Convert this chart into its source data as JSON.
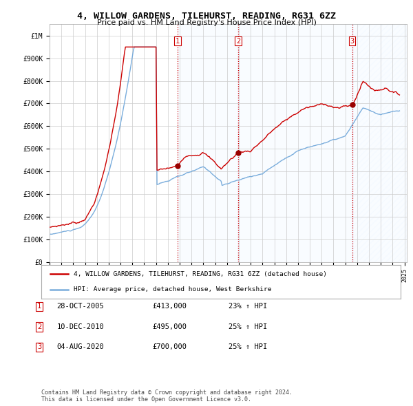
{
  "title": "4, WILLOW GARDENS, TILEHURST, READING, RG31 6ZZ",
  "subtitle": "Price paid vs. HM Land Registry's House Price Index (HPI)",
  "sale_color": "#cc0000",
  "hpi_color": "#7aaddc",
  "dot_color": "#990000",
  "vline_color": "#cc0000",
  "shade_color": "#ddeeff",
  "hatch_color": "#ddeeff",
  "legend_label_sale": "4, WILLOW GARDENS, TILEHURST, READING, RG31 6ZZ (detached house)",
  "legend_label_hpi": "HPI: Average price, detached house, West Berkshire",
  "transactions": [
    {
      "label": "1",
      "date": "28-OCT-2005",
      "price": "£413,000",
      "change": "23% ↑ HPI",
      "year": 2005.83,
      "price_val": 413000
    },
    {
      "label": "2",
      "date": "10-DEC-2010",
      "price": "£495,000",
      "change": "25% ↑ HPI",
      "year": 2010.95,
      "price_val": 495000
    },
    {
      "label": "3",
      "date": "04-AUG-2020",
      "price": "£700,000",
      "change": "25% ↑ HPI",
      "year": 2020.59,
      "price_val": 700000
    }
  ],
  "footer": "Contains HM Land Registry data © Crown copyright and database right 2024.\nThis data is licensed under the Open Government Licence v3.0.",
  "background_color": "#ffffff",
  "grid_color": "#cccccc",
  "xlim": [
    1995.0,
    2025.2
  ],
  "ylim": [
    0,
    1050000
  ],
  "y_ticks": [
    0,
    100000,
    200000,
    300000,
    400000,
    500000,
    600000,
    700000,
    800000,
    900000,
    1000000
  ],
  "y_tick_labels": [
    "£0",
    "£100K",
    "£200K",
    "£300K",
    "£400K",
    "£500K",
    "£600K",
    "£700K",
    "£800K",
    "£900K",
    "£1M"
  ]
}
